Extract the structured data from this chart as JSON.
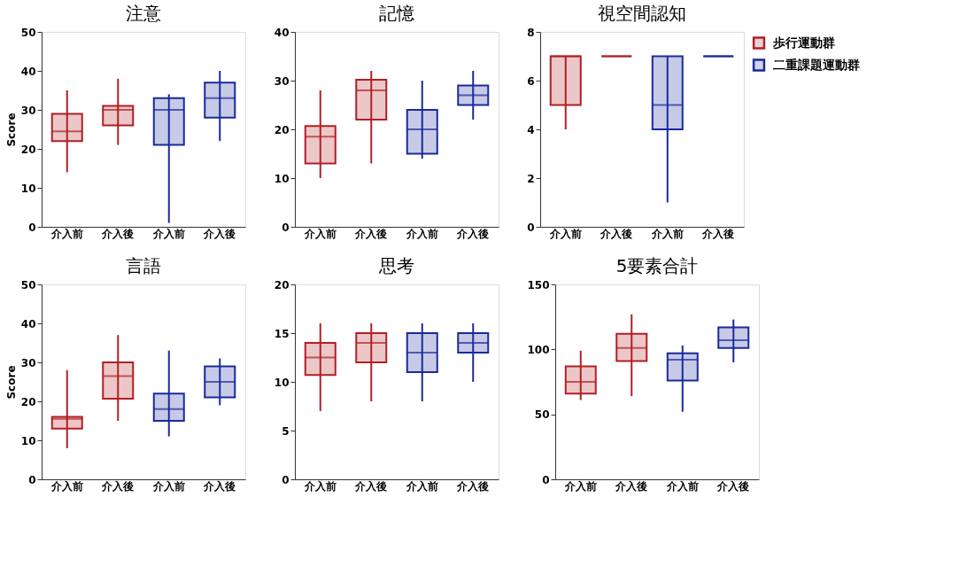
{
  "chart_data": [
    {
      "type": "box",
      "title": "注意",
      "ylabel": "Score",
      "categories": [
        "介入前",
        "介入後",
        "介入前",
        "介入後"
      ],
      "ylim": [
        0,
        50
      ],
      "yticks": [
        0,
        10,
        20,
        30,
        40,
        50
      ],
      "grid": false,
      "series": [
        {
          "color": "#b21f24",
          "boxes": [
            {
              "low": 14,
              "q1": 22,
              "median": 24.5,
              "q3": 29,
              "high": 35
            },
            {
              "low": 21,
              "q1": 26,
              "median": 30,
              "q3": 31,
              "high": 38
            },
            null,
            null
          ]
        },
        {
          "color": "#1a2a9c",
          "boxes": [
            null,
            null,
            {
              "low": 1,
              "q1": 21,
              "median": 30,
              "q3": 33,
              "high": 34
            },
            {
              "low": 22,
              "q1": 28,
              "median": 33,
              "q3": 37,
              "high": 40
            }
          ]
        }
      ]
    },
    {
      "type": "box",
      "title": "記憶",
      "categories": [
        "介入前",
        "介入後",
        "介入前",
        "介入後"
      ],
      "ylim": [
        0,
        40
      ],
      "yticks": [
        0,
        10,
        20,
        30,
        40
      ],
      "grid": false,
      "series": [
        {
          "color": "#b21f24",
          "boxes": [
            {
              "low": 10,
              "q1": 13,
              "median": 18.5,
              "q3": 20.7,
              "high": 28
            },
            {
              "low": 13,
              "q1": 22,
              "median": 28,
              "q3": 30.2,
              "high": 32
            },
            null,
            null
          ]
        },
        {
          "color": "#1a2a9c",
          "boxes": [
            null,
            null,
            {
              "low": 14,
              "q1": 15,
              "median": 20,
              "q3": 24,
              "high": 30
            },
            {
              "low": 22,
              "q1": 25,
              "median": 27,
              "q3": 29,
              "high": 32
            }
          ]
        }
      ]
    },
    {
      "type": "box",
      "title": "視空間認知",
      "categories": [
        "介入前",
        "介入後",
        "介入前",
        "介入後"
      ],
      "ylim": [
        0,
        8
      ],
      "yticks": [
        0,
        2,
        4,
        6,
        8
      ],
      "grid": false,
      "legend": "right",
      "series": [
        {
          "name": "歩行運動群",
          "color": "#b21f24",
          "boxes": [
            {
              "low": 4,
              "q1": 5,
              "median": 7,
              "q3": 7,
              "high": 7
            },
            {
              "low": 7,
              "q1": 7,
              "median": 7,
              "q3": 7,
              "high": 7
            },
            null,
            null
          ]
        },
        {
          "name": "二重課題運動群",
          "color": "#1a2a9c",
          "boxes": [
            null,
            null,
            {
              "low": 1,
              "q1": 4,
              "median": 5,
              "q3": 7,
              "high": 7
            },
            {
              "low": 7,
              "q1": 7,
              "median": 7,
              "q3": 7,
              "high": 7
            }
          ]
        }
      ]
    },
    {
      "type": "box",
      "title": "言語",
      "ylabel": "Score",
      "categories": [
        "介入前",
        "介入後",
        "介入前",
        "介入後"
      ],
      "ylim": [
        0,
        50
      ],
      "yticks": [
        0,
        10,
        20,
        30,
        40,
        50
      ],
      "grid": false,
      "series": [
        {
          "color": "#b21f24",
          "boxes": [
            {
              "low": 8,
              "q1": 13,
              "median": 15.5,
              "q3": 16,
              "high": 28
            },
            {
              "low": 15,
              "q1": 20.7,
              "median": 26.5,
              "q3": 30,
              "high": 37
            },
            null,
            null
          ]
        },
        {
          "color": "#1a2a9c",
          "boxes": [
            null,
            null,
            {
              "low": 11,
              "q1": 15,
              "median": 18,
              "q3": 22,
              "high": 33
            },
            {
              "low": 19,
              "q1": 21,
              "median": 25,
              "q3": 29,
              "high": 31
            }
          ]
        }
      ]
    },
    {
      "type": "box",
      "title": "思考",
      "categories": [
        "介入前",
        "介入後",
        "介入前",
        "介入後"
      ],
      "ylim": [
        0,
        20
      ],
      "yticks": [
        0,
        5,
        10,
        15,
        20
      ],
      "grid": false,
      "series": [
        {
          "color": "#b21f24",
          "boxes": [
            {
              "low": 7,
              "q1": 10.7,
              "median": 12.5,
              "q3": 14,
              "high": 16
            },
            {
              "low": 8,
              "q1": 12,
              "median": 14,
              "q3": 15,
              "high": 16
            },
            null,
            null
          ]
        },
        {
          "color": "#1a2a9c",
          "boxes": [
            null,
            null,
            {
              "low": 8,
              "q1": 11,
              "median": 13,
              "q3": 15,
              "high": 16
            },
            {
              "low": 10,
              "q1": 13,
              "median": 14,
              "q3": 15,
              "high": 16
            }
          ]
        }
      ]
    },
    {
      "type": "box",
      "title": "5要素合計",
      "categories": [
        "介入前",
        "介入後",
        "介入前",
        "介入後"
      ],
      "ylim": [
        0,
        150
      ],
      "yticks": [
        0,
        50,
        100,
        150
      ],
      "grid": false,
      "series": [
        {
          "color": "#b21f24",
          "boxes": [
            {
              "low": 61,
              "q1": 66,
              "median": 75,
              "q3": 87,
              "high": 99
            },
            {
              "low": 64,
              "q1": 91,
              "median": 101,
              "q3": 112,
              "high": 127
            },
            null,
            null
          ]
        },
        {
          "color": "#1a2a9c",
          "boxes": [
            null,
            null,
            {
              "low": 52,
              "q1": 76,
              "median": 92,
              "q3": 97,
              "high": 103
            },
            {
              "low": 90,
              "q1": 101,
              "median": 107,
              "q3": 117,
              "high": 123
            }
          ]
        }
      ]
    }
  ]
}
